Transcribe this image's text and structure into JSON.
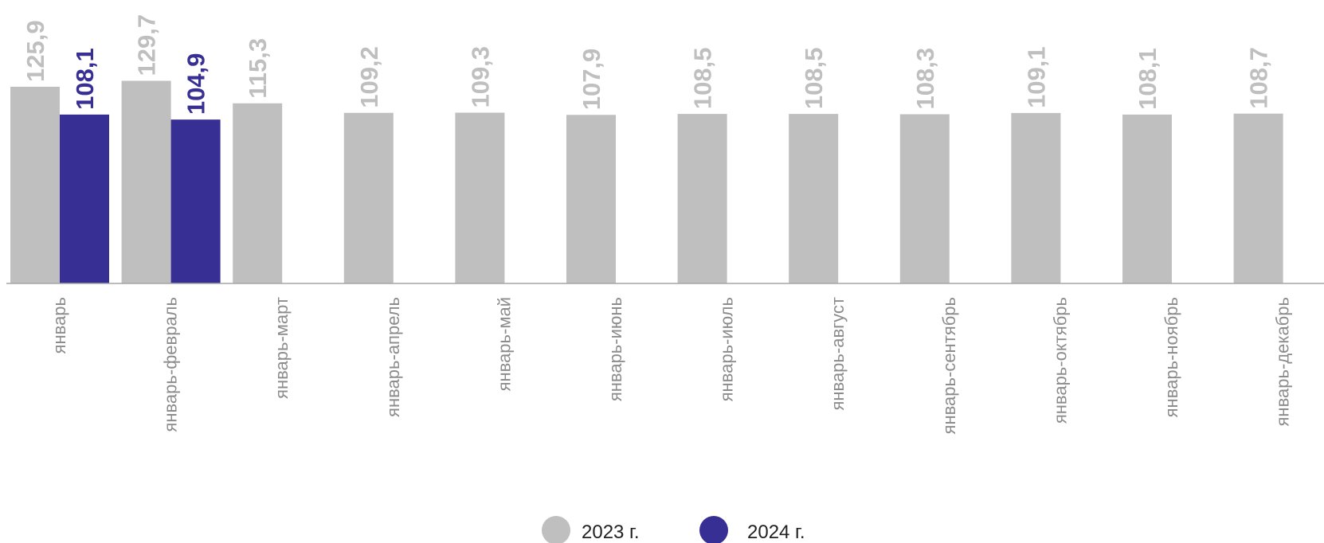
{
  "chart_data": {
    "type": "bar",
    "title": "",
    "xlabel": "",
    "ylabel": "",
    "ylim": [
      0,
      150
    ],
    "grid": false,
    "legend_position": "bottom-center",
    "categories": [
      "январь",
      "январь-февраль",
      "январь-март",
      "январь-апрель",
      "январь-май",
      "январь-июнь",
      "январь-июль",
      "январь-август",
      "январь-сентябрь",
      "январь-октябрь",
      "январь-ноябрь",
      "январь-декабрь"
    ],
    "series": [
      {
        "name": "2023 г.",
        "color": "#bfbfbf",
        "values": [
          125.9,
          129.7,
          115.3,
          109.2,
          109.3,
          107.9,
          108.5,
          108.5,
          108.3,
          109.1,
          108.1,
          108.7
        ],
        "labels": [
          "125,9",
          "129,7",
          "115,3",
          "109,2",
          "109,3",
          "107,9",
          "108,5",
          "108,5",
          "108,3",
          "109,1",
          "108,1",
          "108,7"
        ]
      },
      {
        "name": "2024 г.",
        "color": "#372f94",
        "values": [
          108.1,
          104.9,
          null,
          null,
          null,
          null,
          null,
          null,
          null,
          null,
          null,
          null
        ],
        "labels": [
          "108,1",
          "104,9",
          "",
          "",
          "",
          "",
          "",
          "",
          "",
          "",
          "",
          ""
        ]
      }
    ]
  }
}
